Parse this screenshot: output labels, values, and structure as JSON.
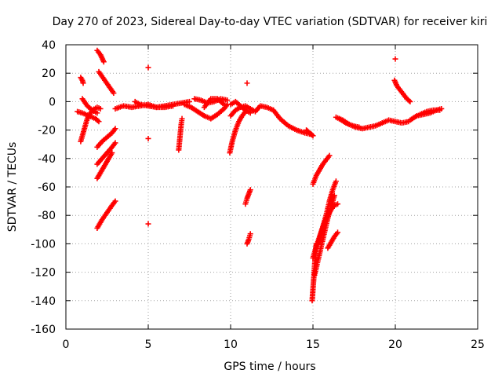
{
  "chart_data": {
    "type": "scatter",
    "title": "Day 270 of 2023, Sidereal Day-to-day VTEC variation (SDTVAR) for receiver kiri",
    "xlabel": "GPS time / hours",
    "ylabel": "SDTVAR / TECUs",
    "xlim": [
      0,
      25
    ],
    "ylim": [
      -160,
      40
    ],
    "xticks": [
      0,
      5,
      10,
      15,
      20,
      25
    ],
    "yticks": [
      -160,
      -140,
      -120,
      -100,
      -80,
      -60,
      -40,
      -20,
      0,
      20,
      40
    ],
    "grid": true,
    "marker": "+",
    "color": "#ff0000",
    "series": [
      {
        "name": "arc-early-1",
        "x": [
          0.9,
          1.0,
          1.05
        ],
        "y": [
          17,
          15,
          13
        ]
      },
      {
        "name": "arc-early-2",
        "x": [
          0.9,
          1.1,
          1.3,
          1.6,
          1.9,
          2.1
        ],
        "y": [
          -28,
          -20,
          -12,
          -6,
          -4,
          -5
        ]
      },
      {
        "name": "arc-early-3",
        "x": [
          0.7,
          1.0,
          1.4,
          1.8,
          2.0
        ],
        "y": [
          -7,
          -8,
          -10,
          -12,
          -14
        ]
      },
      {
        "name": "arc-early-4",
        "x": [
          1.0,
          1.3,
          1.6,
          1.9
        ],
        "y": [
          2,
          -3,
          -6,
          -8
        ]
      },
      {
        "name": "arc-high-1",
        "x": [
          1.9,
          2.1,
          2.3
        ],
        "y": [
          36,
          33,
          28
        ]
      },
      {
        "name": "arc-high-2",
        "x": [
          2.0,
          2.3,
          2.6,
          2.9
        ],
        "y": [
          21,
          16,
          11,
          6
        ]
      },
      {
        "name": "arc-low-1",
        "x": [
          1.9,
          2.2,
          2.5,
          2.8,
          3.0
        ],
        "y": [
          -32,
          -28,
          -25,
          -22,
          -19
        ]
      },
      {
        "name": "arc-low-2",
        "x": [
          1.9,
          2.2,
          2.5,
          2.8,
          3.0
        ],
        "y": [
          -44,
          -40,
          -36,
          -32,
          -29
        ]
      },
      {
        "name": "arc-low-3",
        "x": [
          1.9,
          2.2,
          2.5,
          2.8
        ],
        "y": [
          -54,
          -48,
          -42,
          -36
        ]
      },
      {
        "name": "arc-low-4",
        "x": [
          1.9,
          2.2,
          2.5,
          2.8,
          3.0
        ],
        "y": [
          -89,
          -83,
          -78,
          -73,
          -70
        ]
      },
      {
        "name": "arc-day-1",
        "x": [
          3.0,
          3.5,
          4.0,
          4.5,
          5.0,
          5.5,
          6.0,
          6.5,
          7.0,
          7.5
        ],
        "y": [
          -5,
          -3,
          -4,
          -3,
          -2,
          -4,
          -3,
          -2,
          -1,
          0
        ]
      },
      {
        "name": "arc-day-2",
        "x": [
          4.2,
          4.5,
          5.0,
          5.5,
          6.0,
          6.5
        ],
        "y": [
          0,
          -2,
          -3,
          -4,
          -4,
          -3
        ]
      },
      {
        "name": "arc-5h-1",
        "x": [
          5.0
        ],
        "y": [
          24
        ]
      },
      {
        "name": "arc-5h-2",
        "x": [
          5.0
        ],
        "y": [
          -26
        ]
      },
      {
        "name": "arc-5h-3",
        "x": [
          5.0
        ],
        "y": [
          -86
        ]
      },
      {
        "name": "arc-7h",
        "x": [
          6.85,
          6.9,
          6.95,
          7.0,
          7.05
        ],
        "y": [
          -34,
          -28,
          -22,
          -16,
          -12
        ]
      },
      {
        "name": "arc-mid-1",
        "x": [
          7.2,
          7.6,
          8.0,
          8.4,
          8.8,
          9.2,
          9.6,
          9.8
        ],
        "y": [
          -2,
          -4,
          -7,
          -10,
          -12,
          -9,
          -5,
          -2
        ]
      },
      {
        "name": "arc-mid-2",
        "x": [
          7.8,
          8.2,
          8.6,
          9.0,
          9.4,
          9.8
        ],
        "y": [
          2,
          1,
          -1,
          0,
          2,
          1
        ]
      },
      {
        "name": "arc-mid-3",
        "x": [
          8.4,
          8.8,
          9.2,
          9.6
        ],
        "y": [
          -4,
          2,
          2,
          -2
        ]
      },
      {
        "name": "arc-10h-1",
        "x": [
          9.95,
          10.1,
          10.3,
          10.5,
          10.7,
          10.9
        ],
        "y": [
          -36,
          -28,
          -20,
          -14,
          -10,
          -7
        ]
      },
      {
        "name": "arc-10h-2",
        "x": [
          10.0,
          10.3,
          10.6,
          10.9,
          11.2
        ],
        "y": [
          -2,
          0,
          -3,
          -6,
          -8
        ]
      },
      {
        "name": "arc-10h-3",
        "x": [
          10.0,
          10.3,
          10.6,
          10.9,
          11.2,
          11.5,
          11.8,
          12.2,
          12.6
        ],
        "y": [
          -10,
          -6,
          -4,
          -3,
          -5,
          -7,
          -3,
          -4,
          -6
        ]
      },
      {
        "name": "arc-11h-1",
        "x": [
          11.0
        ],
        "y": [
          13
        ]
      },
      {
        "name": "arc-11h-2",
        "x": [
          10.9,
          11.0,
          11.1,
          11.2
        ],
        "y": [
          -72,
          -68,
          -65,
          -62
        ]
      },
      {
        "name": "arc-11h-3",
        "x": [
          11.0,
          11.1,
          11.2
        ],
        "y": [
          -100,
          -97,
          -93
        ]
      },
      {
        "name": "arc-13h",
        "x": [
          12.6,
          13.0,
          13.5,
          14.0,
          14.5,
          14.9
        ],
        "y": [
          -6,
          -12,
          -17,
          -20,
          -22,
          -23
        ]
      },
      {
        "name": "arc-15h-a",
        "x": [
          14.6,
          14.8,
          15.0
        ],
        "y": [
          -20,
          -22,
          -24
        ]
      },
      {
        "name": "arc-15h-1",
        "x": [
          14.95,
          15.0,
          15.05,
          15.1,
          15.15,
          15.2
        ],
        "y": [
          -140,
          -132,
          -124,
          -115,
          -108,
          -100
        ]
      },
      {
        "name": "arc-15h-2",
        "x": [
          15.0,
          15.2,
          15.4,
          15.6,
          15.8,
          16.0
        ],
        "y": [
          -58,
          -52,
          -48,
          -44,
          -41,
          -38
        ]
      },
      {
        "name": "arc-15h-3",
        "x": [
          15.0,
          15.2,
          15.4,
          15.6,
          15.8,
          16.0,
          16.2,
          16.4
        ],
        "y": [
          -110,
          -102,
          -95,
          -88,
          -80,
          -70,
          -62,
          -56
        ]
      },
      {
        "name": "arc-15h-4",
        "x": [
          15.1,
          15.3,
          15.5,
          15.7,
          15.9,
          16.1,
          16.3
        ],
        "y": [
          -122,
          -112,
          -102,
          -92,
          -82,
          -74,
          -66
        ]
      },
      {
        "name": "arc-15h-5",
        "x": [
          15.3,
          15.5,
          15.7,
          15.9,
          16.1,
          16.3,
          16.5
        ],
        "y": [
          -100,
          -92,
          -85,
          -80,
          -76,
          -73,
          -72
        ]
      },
      {
        "name": "arc-16h",
        "x": [
          15.9,
          16.1,
          16.3,
          16.5
        ],
        "y": [
          -103,
          -99,
          -95,
          -92
        ]
      },
      {
        "name": "arc-17h",
        "x": [
          16.4,
          16.8,
          17.2,
          17.6,
          18.0,
          18.4,
          18.8,
          19.2,
          19.6,
          20.0,
          20.4,
          20.8
        ],
        "y": [
          -11,
          -13,
          -16,
          -18,
          -19,
          -18,
          -17,
          -15,
          -13,
          -14,
          -15,
          -14
        ]
      },
      {
        "name": "arc-17h-b",
        "x": [
          16.6,
          17.0,
          17.4,
          17.8
        ],
        "y": [
          -12,
          -15,
          -17,
          -18
        ]
      },
      {
        "name": "arc-20h-1",
        "x": [
          20.0
        ],
        "y": [
          30
        ]
      },
      {
        "name": "arc-20h-2",
        "x": [
          19.95,
          20.1,
          20.3,
          20.5,
          20.7,
          20.9
        ],
        "y": [
          15,
          11,
          8,
          5,
          2,
          0
        ]
      },
      {
        "name": "arc-late",
        "x": [
          20.9,
          21.3,
          21.7,
          22.1,
          22.5,
          22.8
        ],
        "y": [
          -13,
          -10,
          -9,
          -8,
          -6,
          -5
        ]
      },
      {
        "name": "arc-late-b",
        "x": [
          21.5,
          21.9,
          22.3,
          22.7
        ],
        "y": [
          -9,
          -7,
          -6,
          -6
        ]
      }
    ]
  }
}
